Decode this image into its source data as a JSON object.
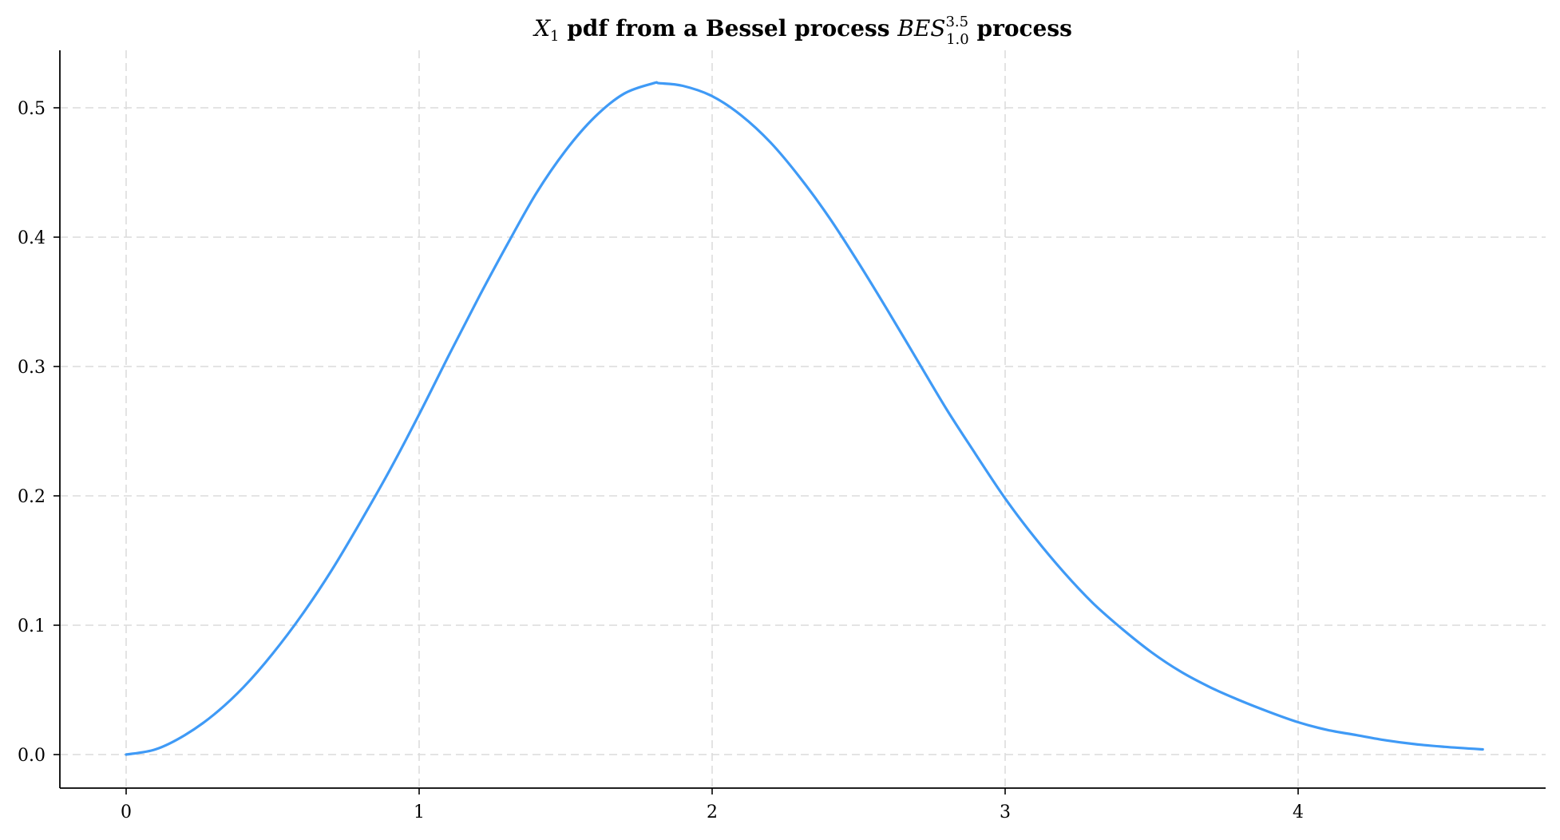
{
  "chart_data": {
    "type": "line",
    "title": {
      "math_prefix": "X",
      "math_prefix_sub": "1",
      "text_middle": " pdf from a Bessel process ",
      "math_name": "BES",
      "math_name_sup": "3.5",
      "math_name_sub": "1.0",
      "text_suffix": " process"
    },
    "xlabel": "",
    "ylabel": "",
    "xlim": [
      -0.23,
      4.86
    ],
    "ylim": [
      -0.026,
      0.545
    ],
    "x_ticks": [
      0,
      1,
      2,
      3,
      4
    ],
    "x_tick_labels": [
      "0",
      "1",
      "2",
      "3",
      "4"
    ],
    "y_ticks": [
      0.0,
      0.1,
      0.2,
      0.3,
      0.4,
      0.5
    ],
    "y_tick_labels": [
      "0.0",
      "0.1",
      "0.2",
      "0.3",
      "0.4",
      "0.5"
    ],
    "grid": true,
    "line_color": "#3f9af6",
    "series": [
      {
        "x": [
          0.0,
          0.1,
          0.2,
          0.3,
          0.4,
          0.5,
          0.6,
          0.7,
          0.8,
          0.9,
          1.0,
          1.1,
          1.2,
          1.3,
          1.4,
          1.5,
          1.6,
          1.7,
          1.8,
          1.82,
          1.9,
          2.0,
          2.1,
          2.2,
          2.3,
          2.4,
          2.5,
          2.6,
          2.7,
          2.8,
          2.9,
          3.0,
          3.1,
          3.2,
          3.3,
          3.4,
          3.5,
          3.6,
          3.7,
          3.8,
          3.9,
          4.0,
          4.1,
          4.2,
          4.3,
          4.4,
          4.5,
          4.63
        ],
        "y": [
          0.0,
          0.004,
          0.015,
          0.031,
          0.052,
          0.078,
          0.108,
          0.142,
          0.18,
          0.22,
          0.263,
          0.308,
          0.352,
          0.394,
          0.434,
          0.467,
          0.493,
          0.511,
          0.519,
          0.519,
          0.517,
          0.509,
          0.494,
          0.473,
          0.446,
          0.415,
          0.38,
          0.343,
          0.305,
          0.267,
          0.232,
          0.198,
          0.168,
          0.141,
          0.117,
          0.097,
          0.079,
          0.064,
          0.052,
          0.042,
          0.033,
          0.025,
          0.019,
          0.015,
          0.011,
          0.008,
          0.006,
          0.004
        ]
      }
    ]
  }
}
